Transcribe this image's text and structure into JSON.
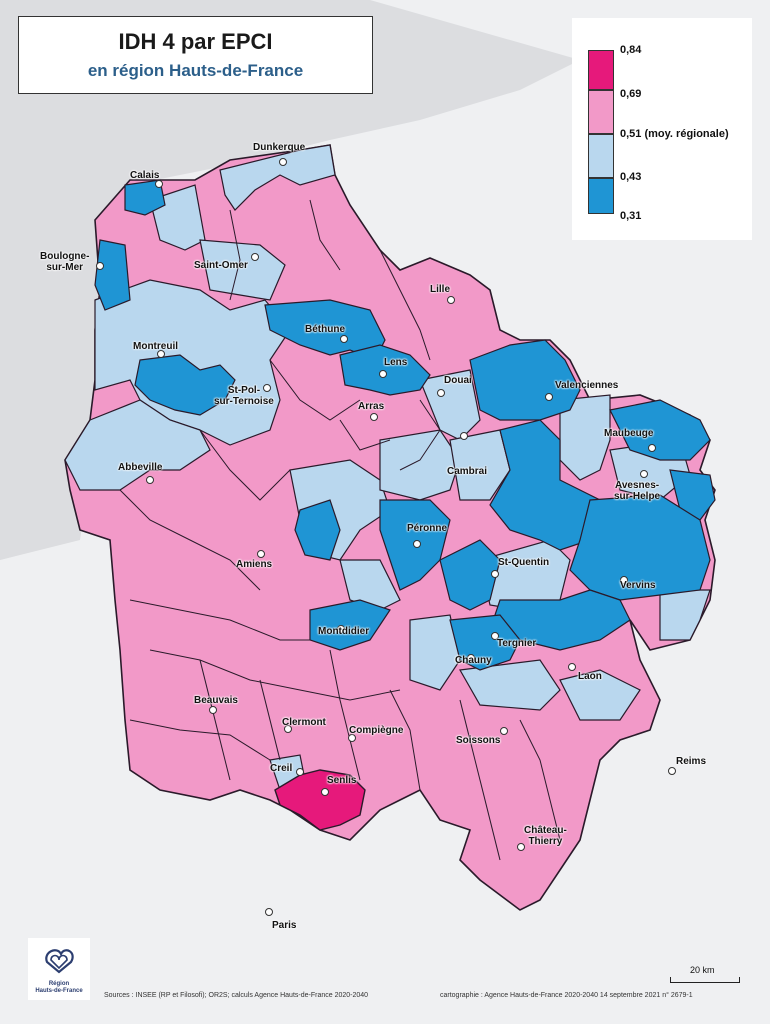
{
  "title": {
    "line1": "IDH 4 par EPCI",
    "line2": "en région Hauts-de-France"
  },
  "colors": {
    "class_084": "#e6197b",
    "class_069": "#f299c8",
    "class_051": "#b9d7ee",
    "class_043": "#1f95d4",
    "border": "#2a1a2a",
    "sea": "#dcdde0",
    "outside": "#eff0f2",
    "background": "#dcdde0"
  },
  "legend": {
    "labels": [
      "0,84",
      "0,69",
      "0,51  (moy. régionale)",
      "0,43",
      "0,31"
    ]
  },
  "cities": {
    "dunkerque": "Dunkerque",
    "calais": "Calais",
    "boulogne": "Boulogne-\nsur-Mer",
    "saint_omer": "Saint-Omer",
    "lille": "Lille",
    "bethune": "Béthune",
    "montreuil": "Montreuil",
    "lens": "Lens",
    "douai": "Douai",
    "valenciennes": "Valenciennes",
    "st_pol": "St-Pol-\nsur-Ternoise",
    "arras": "Arras",
    "maubeuge": "Maubeuge",
    "abbeville": "Abbeville",
    "cambrai": "Cambrai",
    "avesnes": "Avesnes-\nsur-Helpe",
    "peronne": "Péronne",
    "amiens": "Amiens",
    "st_quentin": "St-Quentin",
    "vervins": "Vervins",
    "montdidier": "Montdidier",
    "tergnier": "Tergnier",
    "chauny": "Chauny",
    "laon": "Laon",
    "beauvais": "Beauvais",
    "clermont": "Clermont",
    "compiegne": "Compiègne",
    "soissons": "Soissons",
    "reims": "Reims",
    "creil": "Creil",
    "senlis": "Senlis",
    "chateau_thierry": "Château-\nThierry",
    "paris": "Paris"
  },
  "logo": {
    "line1": "Région",
    "line2": "Hauts-de-France"
  },
  "scale_label": "20  km",
  "footer": {
    "sources": "Sources : INSEE (RP et Filosofi); OR2S; calculs Agence Hauts-de-France 2020-2040",
    "credits": "cartographie : Agence Hauts-de-France 2020-2040    14 septembre 2021 n° 2679-1"
  }
}
